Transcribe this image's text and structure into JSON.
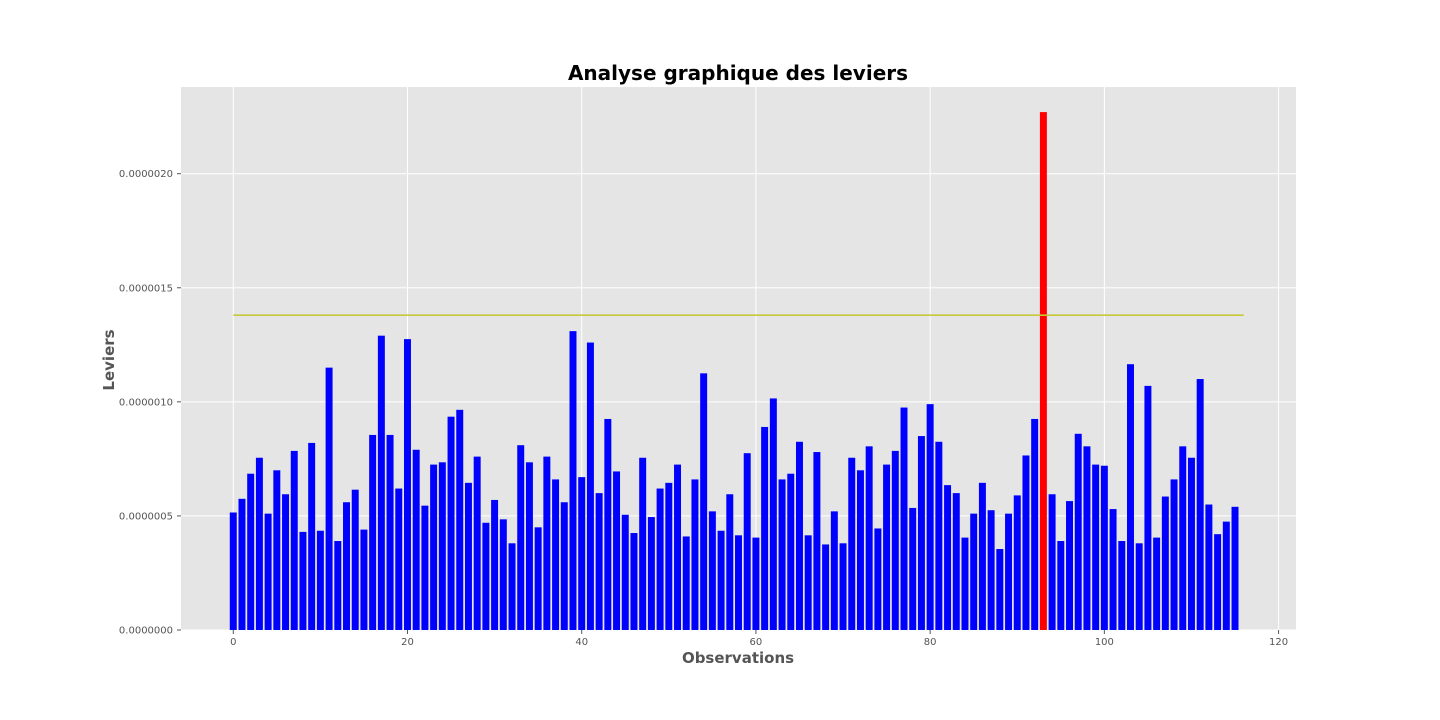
{
  "chart_data": {
    "type": "bar",
    "title": "Analyse graphique des leviers",
    "xlabel": "Observations",
    "ylabel": "Leviers",
    "xlim": [
      -6,
      122
    ],
    "ylim": [
      0,
      2.38e-06
    ],
    "xticks": [
      0,
      20,
      40,
      60,
      80,
      100,
      120
    ],
    "yticks": [
      0,
      5e-07,
      1e-06,
      1.5e-06,
      2e-06
    ],
    "ytick_labels": [
      "0.0000000",
      "0.0000005",
      "0.0000010",
      "0.0000015",
      "0.0000020"
    ],
    "grid": true,
    "threshold": {
      "value": 1.38e-06,
      "x_start": 0,
      "x_end": 116,
      "color": "#c8c83a"
    },
    "colors": {
      "bar": "#0000ff",
      "highlight": "#ff0000",
      "plot_bg": "#e5e5e5",
      "grid": "#ffffff"
    },
    "highlight_index": 93,
    "values": [
      5.15e-07,
      5.75e-07,
      6.85e-07,
      7.55e-07,
      5.1e-07,
      7e-07,
      5.95e-07,
      7.85e-07,
      4.3e-07,
      8.2e-07,
      4.35e-07,
      1.15e-06,
      3.9e-07,
      5.6e-07,
      6.15e-07,
      4.4e-07,
      8.55e-07,
      1.29e-06,
      8.55e-07,
      6.2e-07,
      1.275e-06,
      7.9e-07,
      5.45e-07,
      7.25e-07,
      7.35e-07,
      9.35e-07,
      9.65e-07,
      6.45e-07,
      7.6e-07,
      4.7e-07,
      5.7e-07,
      4.85e-07,
      3.8e-07,
      8.1e-07,
      7.35e-07,
      4.5e-07,
      7.6e-07,
      6.6e-07,
      5.6e-07,
      1.31e-06,
      6.7e-07,
      1.26e-06,
      6e-07,
      9.25e-07,
      6.95e-07,
      5.05e-07,
      4.25e-07,
      7.55e-07,
      4.95e-07,
      6.2e-07,
      6.45e-07,
      7.25e-07,
      4.1e-07,
      6.6e-07,
      1.125e-06,
      5.2e-07,
      4.35e-07,
      5.95e-07,
      4.15e-07,
      7.75e-07,
      4.05e-07,
      8.9e-07,
      1.015e-06,
      6.6e-07,
      6.85e-07,
      8.25e-07,
      4.15e-07,
      7.8e-07,
      3.75e-07,
      5.2e-07,
      3.8e-07,
      7.55e-07,
      7e-07,
      8.05e-07,
      4.45e-07,
      7.25e-07,
      7.85e-07,
      9.75e-07,
      5.35e-07,
      8.5e-07,
      9.9e-07,
      8.25e-07,
      6.35e-07,
      6e-07,
      4.05e-07,
      5.1e-07,
      6.45e-07,
      5.25e-07,
      3.55e-07,
      5.1e-07,
      5.9e-07,
      7.65e-07,
      9.25e-07,
      2.27e-06,
      5.95e-07,
      3.9e-07,
      5.65e-07,
      8.6e-07,
      8.05e-07,
      7.25e-07,
      7.2e-07,
      5.3e-07,
      3.9e-07,
      1.165e-06,
      3.8e-07,
      1.07e-06,
      4.05e-07,
      5.85e-07,
      6.6e-07,
      8.05e-07,
      7.55e-07,
      1.1e-06,
      5.5e-07,
      4.2e-07,
      4.75e-07,
      5.4e-07
    ]
  }
}
